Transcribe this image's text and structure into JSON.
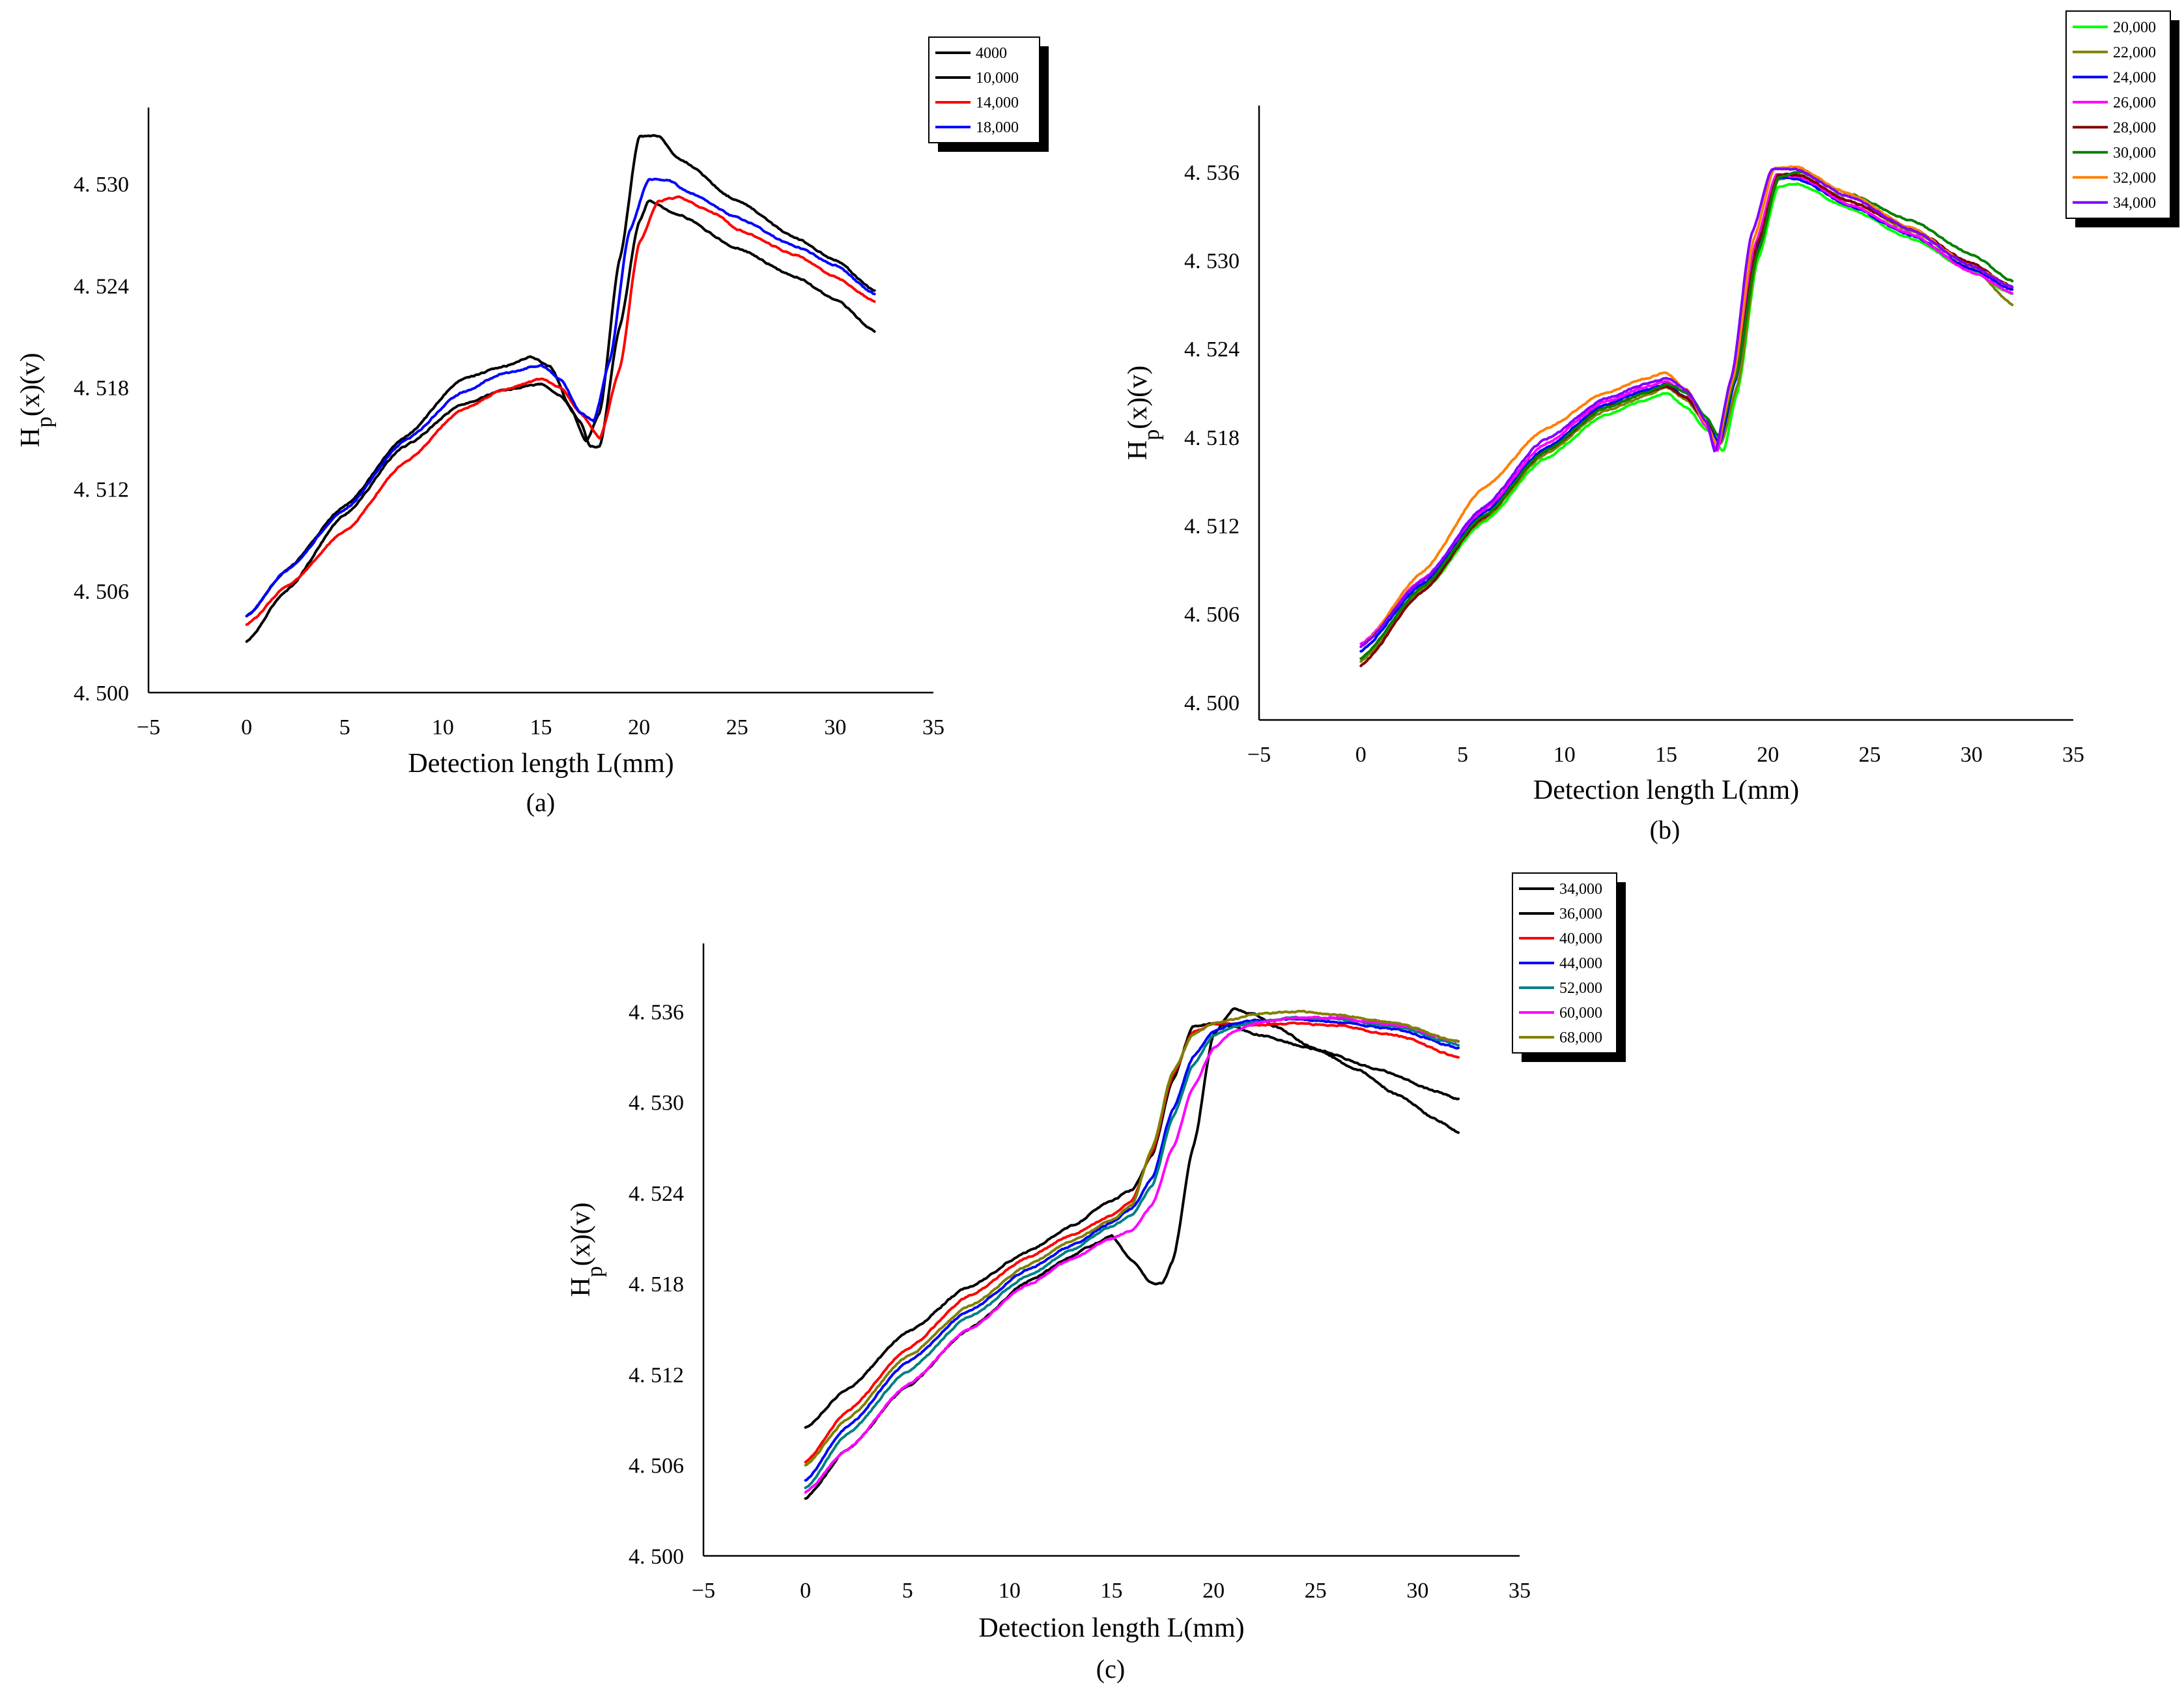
{
  "chart_data": [
    {
      "panel": "(a)",
      "type": "line",
      "caption": "(a)",
      "xlabel": "Detection length L(mm)",
      "ylabel_main": "H",
      "ylabel_sub": "p",
      "ylabel_tail": "(x)(v)",
      "xlim": [
        -5,
        35
      ],
      "ylim": [
        4.5,
        4.5345
      ],
      "xticks": [
        -5,
        0,
        5,
        10,
        15,
        20,
        25,
        30,
        35
      ],
      "xtick_labels": [
        "−5",
        "0",
        "5",
        "10",
        "15",
        "20",
        "25",
        "30",
        "35"
      ],
      "yticks": [
        4.5,
        4.506,
        4.512,
        4.518,
        4.524,
        4.53
      ],
      "ytick_labels": [
        "4. 500",
        "4. 506",
        "4. 512",
        "4. 518",
        "4. 524",
        "4. 530"
      ],
      "series": [
        {
          "name": "4000",
          "color": "#000000",
          "x": [
            0,
            2,
            5,
            8,
            11,
            13,
            15,
            16,
            17,
            17.5,
            18,
            19,
            20,
            20.5,
            22,
            25,
            28,
            30,
            32
          ],
          "y": [
            4.503,
            4.506,
            4.5105,
            4.5145,
            4.517,
            4.5178,
            4.5182,
            4.5175,
            4.516,
            4.5145,
            4.5145,
            4.5215,
            4.5278,
            4.529,
            4.5282,
            4.5262,
            4.5245,
            4.5232,
            4.5213
          ]
        },
        {
          "name": "10,000",
          "color": "#000000",
          "x": [
            0,
            2,
            5,
            8,
            11,
            13,
            14.5,
            15.5,
            16.5,
            17.3,
            18,
            19,
            20,
            21,
            22,
            25,
            28,
            30,
            32
          ],
          "y": [
            4.5045,
            4.5072,
            4.511,
            4.515,
            4.5185,
            4.5192,
            4.5198,
            4.5192,
            4.5168,
            4.5148,
            4.5165,
            4.5255,
            4.5328,
            4.5328,
            4.5315,
            4.529,
            4.5268,
            4.5255,
            4.5237
          ]
        },
        {
          "name": "14,000",
          "color": "#ff0000",
          "x": [
            0,
            2,
            5,
            8,
            11,
            13,
            15,
            16,
            17,
            18,
            19,
            20,
            21,
            22,
            24,
            25,
            28,
            30,
            32
          ],
          "y": [
            4.504,
            4.5062,
            4.5095,
            4.5135,
            4.5167,
            4.5178,
            4.5185,
            4.518,
            4.5165,
            4.515,
            4.519,
            4.5265,
            4.529,
            4.5292,
            4.5282,
            4.5273,
            4.5258,
            4.5245,
            4.5231
          ]
        },
        {
          "name": "18,000",
          "color": "#0000ff",
          "x": [
            0,
            2,
            5,
            8,
            11,
            13,
            15,
            16,
            17,
            17.7,
            18.5,
            19.5,
            20.5,
            21.5,
            22.5,
            25,
            28,
            30,
            32
          ],
          "y": [
            4.5045,
            4.5072,
            4.5108,
            4.5148,
            4.5177,
            4.5188,
            4.5193,
            4.5185,
            4.5165,
            4.516,
            4.5195,
            4.5272,
            4.5303,
            4.5302,
            4.5295,
            4.528,
            4.5263,
            4.5252,
            4.5235
          ]
        }
      ]
    },
    {
      "panel": "(b)",
      "type": "line",
      "caption": "(b)",
      "xlabel": "Detection length L(mm)",
      "ylabel_main": "H",
      "ylabel_sub": "p",
      "ylabel_tail": "(x)(v)",
      "xlim": [
        -5,
        35
      ],
      "ylim": [
        4.4988,
        4.5405
      ],
      "xticks": [
        -5,
        0,
        5,
        10,
        15,
        20,
        25,
        30,
        35
      ],
      "xtick_labels": [
        "−5",
        "0",
        "5",
        "10",
        "15",
        "20",
        "25",
        "30",
        "35"
      ],
      "yticks": [
        4.5,
        4.506,
        4.512,
        4.518,
        4.524,
        4.53,
        4.536
      ],
      "ytick_labels": [
        "4. 500",
        "4. 506",
        "4. 512",
        "4. 518",
        "4. 524",
        "4. 530",
        "4. 536"
      ],
      "series": [
        {
          "name": "20,000",
          "color": "#00ff00",
          "x": [
            0,
            3,
            6,
            9,
            12,
            14,
            15,
            16,
            17,
            17.8,
            18.5,
            19.5,
            20.5,
            21.5,
            24,
            27,
            30,
            32
          ],
          "y": [
            4.503,
            4.5075,
            4.5122,
            4.5165,
            4.5195,
            4.5205,
            4.521,
            4.52,
            4.5185,
            4.517,
            4.521,
            4.53,
            4.535,
            4.5352,
            4.5335,
            4.5315,
            4.5293,
            4.5277
          ]
        },
        {
          "name": "22,000",
          "color": "#808000",
          "x": [
            0,
            3,
            6,
            9,
            12,
            14,
            15,
            16,
            17,
            17.7,
            18.5,
            19.5,
            20.5,
            21.5,
            24,
            27,
            30,
            32
          ],
          "y": [
            4.5028,
            4.5077,
            4.5124,
            4.5168,
            4.5198,
            4.5208,
            4.5214,
            4.5205,
            4.5188,
            4.5175,
            4.5215,
            4.5305,
            4.5355,
            4.5358,
            4.534,
            4.532,
            4.5296,
            4.527
          ]
        },
        {
          "name": "24,000",
          "color": "#0000ff",
          "x": [
            0,
            3,
            6,
            9,
            12,
            14,
            15,
            16,
            17,
            17.6,
            18.4,
            19.5,
            20.5,
            21.5,
            24,
            27,
            30,
            32
          ],
          "y": [
            4.5035,
            4.508,
            4.5128,
            4.5172,
            4.5202,
            4.5212,
            4.5216,
            4.5207,
            4.519,
            4.5175,
            4.5218,
            4.531,
            4.5356,
            4.5355,
            4.5337,
            4.5317,
            4.5294,
            4.528
          ]
        },
        {
          "name": "26,000",
          "color": "#ff00ff",
          "x": [
            0,
            3,
            6,
            9,
            12,
            14,
            15,
            16,
            17,
            17.5,
            18.3,
            19.4,
            20.4,
            21.5,
            24,
            27,
            30,
            32
          ],
          "y": [
            4.504,
            4.5083,
            4.513,
            4.5175,
            4.5204,
            4.5214,
            4.5218,
            4.521,
            4.5187,
            4.517,
            4.522,
            4.5312,
            4.5358,
            4.5357,
            4.5338,
            4.5318,
            4.5292,
            4.5278
          ]
        },
        {
          "name": "28,000",
          "color": "#800000",
          "x": [
            0,
            3,
            6,
            9,
            12,
            14,
            15,
            16,
            17,
            17.6,
            18.4,
            19.5,
            20.5,
            21.5,
            24,
            27,
            30,
            32
          ],
          "y": [
            4.5025,
            4.5075,
            4.5125,
            4.517,
            4.52,
            4.521,
            4.5214,
            4.5207,
            4.519,
            4.518,
            4.5222,
            4.5312,
            4.5358,
            4.5358,
            4.534,
            4.5322,
            4.5298,
            4.5282
          ]
        },
        {
          "name": "30,000",
          "color": "#008000",
          "x": [
            0,
            3,
            6,
            9,
            12,
            14,
            15,
            16,
            17,
            17.6,
            18.4,
            19.5,
            20.5,
            21.5,
            24,
            27,
            30,
            32
          ],
          "y": [
            4.503,
            4.5078,
            4.5126,
            4.517,
            4.52,
            4.521,
            4.5216,
            4.521,
            4.5193,
            4.518,
            4.522,
            4.5305,
            4.5356,
            4.536,
            4.5345,
            4.5327,
            4.5304,
            4.5286
          ]
        },
        {
          "name": "32,000",
          "color": "#ff8000",
          "x": [
            0,
            3,
            6,
            9,
            12,
            14,
            15,
            16,
            17,
            17.5,
            18.3,
            19.3,
            20.3,
            21.3,
            24,
            27,
            30,
            32
          ],
          "y": [
            4.5038,
            4.5088,
            4.5145,
            4.5185,
            4.521,
            4.522,
            4.5224,
            4.5212,
            4.5188,
            4.5175,
            4.522,
            4.5315,
            4.5362,
            4.5364,
            4.5345,
            4.5322,
            4.5296,
            4.5282
          ]
        },
        {
          "name": "34,000",
          "color": "#8000ff",
          "x": [
            0,
            3,
            6,
            9,
            12,
            14,
            15,
            16,
            17,
            17.4,
            18.2,
            19.2,
            20.2,
            21.3,
            24,
            27,
            30,
            32
          ],
          "y": [
            4.5038,
            4.5082,
            4.5132,
            4.5178,
            4.5206,
            4.5216,
            4.522,
            4.5212,
            4.519,
            4.517,
            4.522,
            4.5318,
            4.5362,
            4.5362,
            4.5343,
            4.5321,
            4.5296,
            4.5282
          ]
        }
      ]
    },
    {
      "panel": "(c)",
      "type": "line",
      "caption": "(c)",
      "xlabel": "Detection length L(mm)",
      "ylabel_main": "H",
      "ylabel_sub": "p",
      "ylabel_tail": "(x)(v)",
      "xlim": [
        -5,
        35
      ],
      "ylim": [
        4.5,
        4.5405
      ],
      "xticks": [
        -5,
        0,
        5,
        10,
        15,
        20,
        25,
        30,
        35
      ],
      "xtick_labels": [
        "−5",
        "0",
        "5",
        "10",
        "15",
        "20",
        "25",
        "30",
        "35"
      ],
      "yticks": [
        4.5,
        4.506,
        4.512,
        4.518,
        4.524,
        4.53,
        4.536
      ],
      "ytick_labels": [
        "4. 500",
        "4. 506",
        "4. 512",
        "4. 518",
        "4. 524",
        "4. 530",
        "4. 536"
      ],
      "series": [
        {
          "name": "34,000",
          "color": "#000000",
          "x": [
            0,
            2,
            5,
            8,
            11,
            13,
            14,
            15,
            16,
            17,
            17.5,
            18,
            19,
            20,
            21,
            22,
            23,
            25,
            27,
            29,
            31,
            32
          ],
          "y": [
            4.5038,
            4.507,
            4.5112,
            4.515,
            4.5182,
            4.5198,
            4.5205,
            4.5212,
            4.5195,
            4.518,
            4.518,
            4.5195,
            4.527,
            4.5345,
            4.5362,
            4.5358,
            4.535,
            4.5335,
            4.5322,
            4.5305,
            4.5288,
            4.528
          ]
        },
        {
          "name": "36,000",
          "color": "#000000",
          "x": [
            0,
            2,
            5,
            8,
            11,
            13,
            15,
            16,
            17,
            18,
            19,
            20,
            21,
            22,
            25,
            28,
            31,
            32
          ],
          "y": [
            4.5085,
            4.511,
            4.5148,
            4.5178,
            4.5202,
            4.5218,
            4.5235,
            4.5242,
            4.5265,
            4.5315,
            4.535,
            4.5352,
            4.535,
            4.5345,
            4.5335,
            4.5322,
            4.5307,
            4.5302
          ]
        },
        {
          "name": "40,000",
          "color": "#ff0000",
          "x": [
            0,
            2,
            5,
            8,
            11,
            13,
            15,
            16,
            17,
            18,
            19,
            20,
            21,
            22,
            24,
            26,
            29,
            32
          ],
          "y": [
            4.5062,
            4.5095,
            4.5137,
            4.5172,
            4.5198,
            4.5212,
            4.5225,
            4.5235,
            4.5268,
            4.5318,
            4.5346,
            4.5352,
            4.5352,
            4.5351,
            4.5352,
            4.5351,
            4.5344,
            4.533
          ]
        },
        {
          "name": "44,000",
          "color": "#0000ff",
          "x": [
            0,
            2,
            5,
            8,
            11,
            13,
            15,
            16,
            17,
            18,
            19,
            20,
            21,
            22,
            24,
            26,
            29,
            32
          ],
          "y": [
            4.505,
            4.5085,
            4.5128,
            4.5162,
            4.519,
            4.5205,
            4.522,
            4.523,
            4.525,
            4.5295,
            4.533,
            4.5347,
            4.5352,
            4.5354,
            4.5355,
            4.5353,
            4.5348,
            4.5336
          ]
        },
        {
          "name": "52,000",
          "color": "#008080",
          "x": [
            0,
            2,
            5,
            8,
            11,
            13,
            15,
            16,
            17,
            18,
            19,
            20,
            21,
            22,
            24,
            26,
            29,
            32
          ],
          "y": [
            4.5045,
            4.508,
            4.5122,
            4.5158,
            4.5186,
            4.5202,
            4.5218,
            4.5225,
            4.5245,
            4.529,
            4.5325,
            4.5344,
            4.535,
            4.5353,
            4.5356,
            4.5355,
            4.535,
            4.5338
          ]
        },
        {
          "name": "60,000",
          "color": "#ff00ff",
          "x": [
            0,
            2,
            5,
            8,
            11,
            13,
            15,
            16,
            17,
            18,
            19,
            20,
            21,
            22,
            24,
            26,
            29,
            32
          ],
          "y": [
            4.5042,
            4.507,
            4.5113,
            4.515,
            4.518,
            4.5196,
            4.521,
            4.5215,
            4.5232,
            4.527,
            4.531,
            4.5336,
            4.5347,
            4.5352,
            4.5356,
            4.5356,
            4.5351,
            4.534
          ]
        },
        {
          "name": "68,000",
          "color": "#808000",
          "x": [
            0,
            2,
            5,
            8,
            11,
            13,
            15,
            16,
            17,
            18,
            19,
            20,
            21,
            22,
            24,
            26,
            29,
            32
          ],
          "y": [
            4.506,
            4.509,
            4.5132,
            4.5165,
            4.5193,
            4.5208,
            4.5222,
            4.5232,
            4.527,
            4.532,
            4.5345,
            4.5352,
            4.5355,
            4.5358,
            4.536,
            4.5358,
            4.5352,
            4.534
          ]
        }
      ]
    }
  ]
}
